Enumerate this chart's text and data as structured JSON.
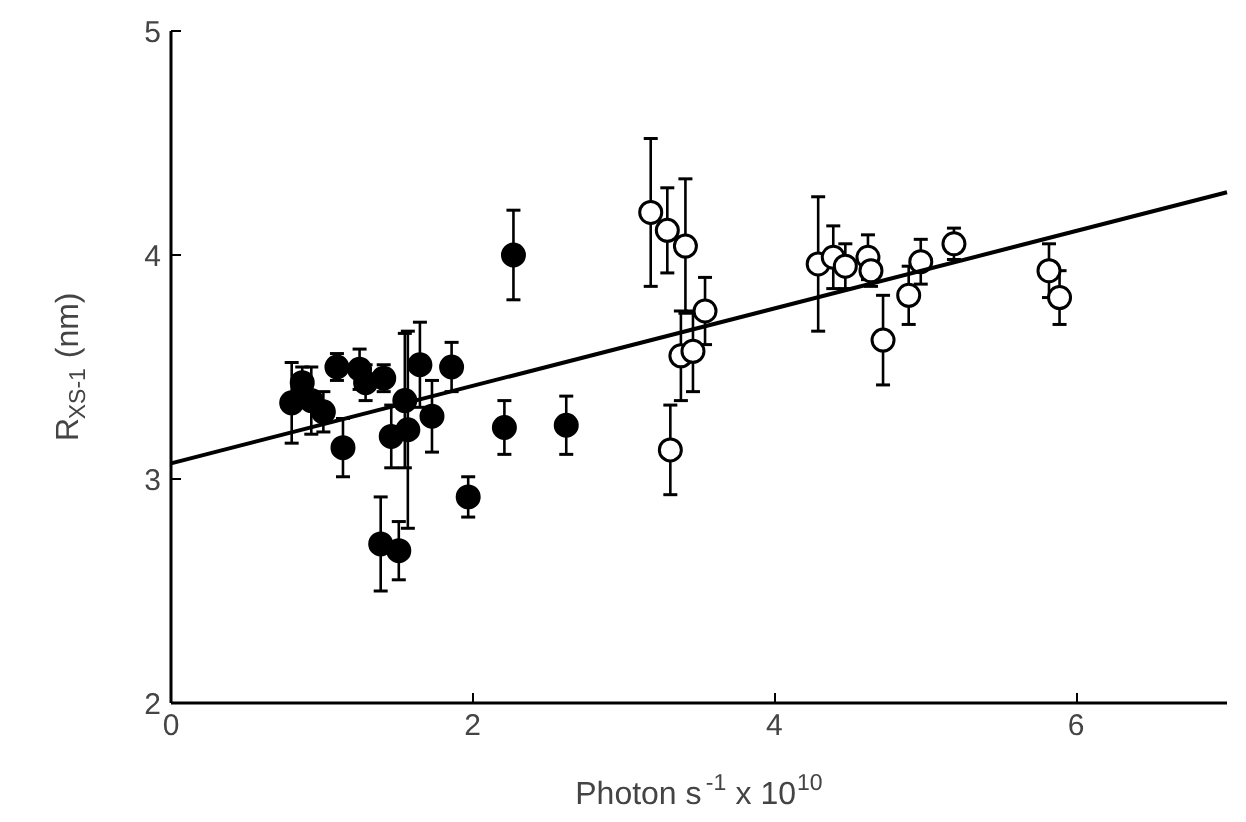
{
  "chart_data": {
    "type": "scatter",
    "xlabel": "Photon s$^{-1}$ x 10$^{10}$",
    "ylabel": "R$_{XS-1}$ (nm)",
    "xlim": [
      0,
      7
    ],
    "ylim": [
      2,
      5
    ],
    "xticks": [
      0,
      2,
      4,
      6
    ],
    "yticks": [
      2,
      3,
      4,
      5
    ],
    "grid": false,
    "marker": "circle",
    "series": [
      {
        "color": "#000000",
        "x": [
          0.8,
          0.87,
          0.93,
          1.01,
          1.1,
          1.14,
          1.25,
          1.29,
          1.41,
          1.39,
          1.46,
          1.51,
          1.55,
          1.57,
          1.65,
          1.73,
          1.86,
          1.97,
          2.21,
          2.27,
          2.62
        ],
        "values": [
          3.34,
          3.43,
          3.35,
          3.3,
          3.5,
          3.14,
          3.49,
          3.43,
          3.45,
          2.71,
          3.19,
          2.68,
          3.35,
          3.22,
          3.51,
          3.28,
          3.5,
          2.92,
          3.23,
          4.0,
          3.24
        ],
        "errors": [
          0.18,
          0.07,
          0.15,
          0.09,
          0.06,
          0.13,
          0.09,
          0.08,
          0.06,
          0.21,
          0.14,
          0.13,
          0.3,
          0.44,
          0.19,
          0.16,
          0.11,
          0.09,
          0.12,
          0.2,
          0.13
        ]
      },
      {
        "color": "#ffffff",
        "x": [
          3.18,
          3.29,
          3.41,
          3.31,
          3.38,
          3.46,
          3.54,
          4.29,
          4.39,
          4.47,
          4.62,
          4.64,
          4.72,
          4.89,
          4.97,
          5.19,
          5.82,
          5.89
        ],
        "values": [
          4.19,
          4.11,
          4.04,
          3.13,
          3.55,
          3.57,
          3.75,
          3.96,
          3.99,
          3.95,
          3.99,
          3.93,
          3.62,
          3.82,
          3.97,
          4.05,
          3.93,
          3.81
        ],
        "errors": [
          0.33,
          0.19,
          0.3,
          0.2,
          0.2,
          0.18,
          0.15,
          0.3,
          0.14,
          0.1,
          0.1,
          0.07,
          0.2,
          0.13,
          0.1,
          0.07,
          0.12,
          0.12
        ]
      },
      {
        "type": "line",
        "marker": "none",
        "color": "#000000",
        "x": [
          0,
          7
        ],
        "values": [
          3.07,
          4.28
        ]
      }
    ]
  }
}
